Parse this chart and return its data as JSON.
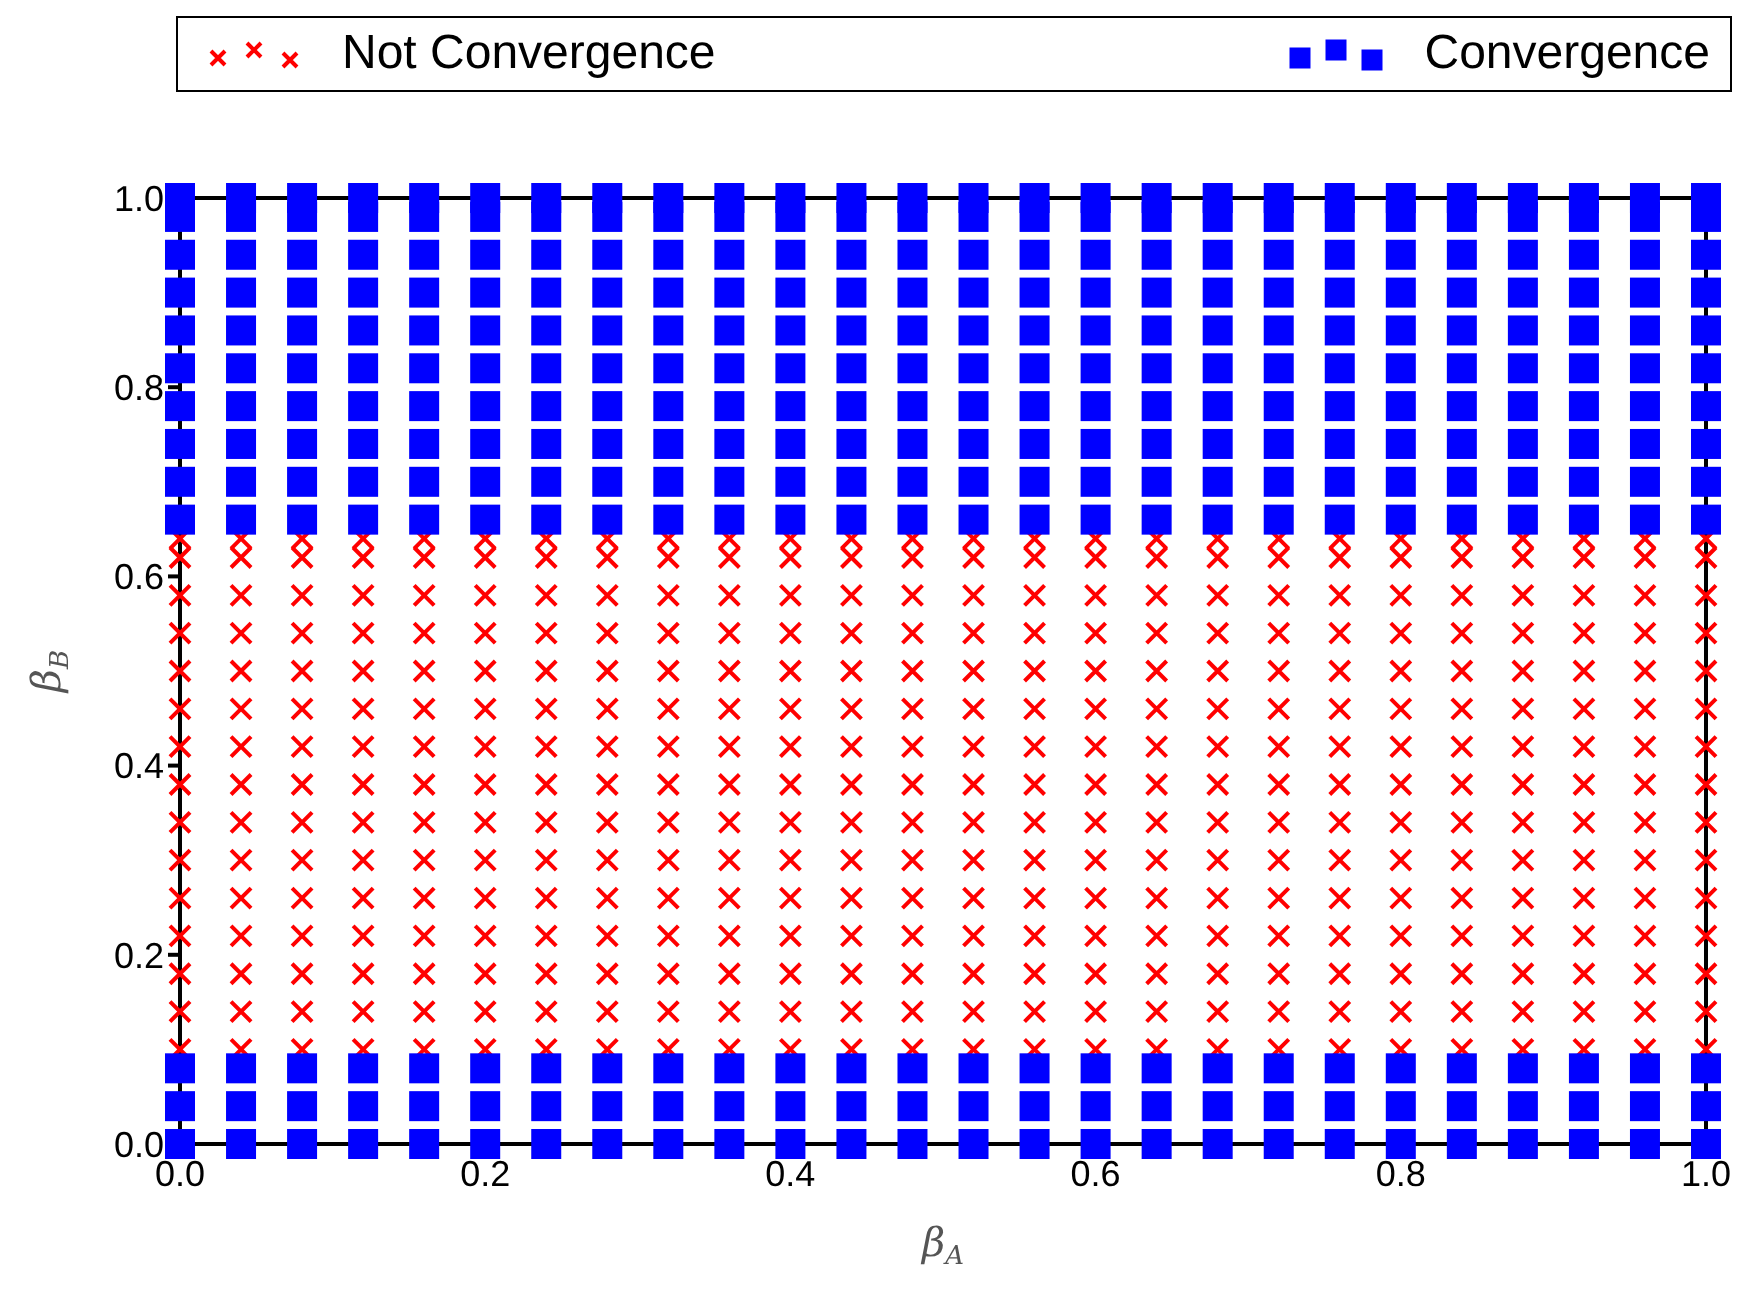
{
  "chart_data": {
    "type": "scatter",
    "xlabel": "β$_{A}$",
    "ylabel": "β$_{B}$",
    "legend": "top",
    "grid": false,
    "xlim": [
      0,
      1
    ],
    "ylim": [
      0,
      1
    ],
    "xticks": [
      {
        "value": 0,
        "label": "0.0"
      },
      {
        "value": 0.2,
        "label": "0.2"
      },
      {
        "value": 0.4,
        "label": "0.4"
      },
      {
        "value": 0.6,
        "label": "0.6"
      },
      {
        "value": 0.8,
        "label": "0.8"
      },
      {
        "value": 1,
        "label": "1.0"
      }
    ],
    "yticks": [
      {
        "value": 0,
        "label": "0.0"
      },
      {
        "value": 0.2,
        "label": "0.2"
      },
      {
        "value": 0.4,
        "label": "0.4"
      },
      {
        "value": 0.6,
        "label": "0.6"
      },
      {
        "value": 0.8,
        "label": "0.8"
      },
      {
        "value": 1,
        "label": "1.0"
      }
    ],
    "x": [
      0,
      0.04,
      0.08,
      0.12,
      0.16,
      0.2,
      0.24,
      0.28,
      0.32,
      0.36,
      0.4,
      0.44,
      0.48,
      0.52,
      0.56,
      0.6,
      0.64,
      0.68,
      0.72,
      0.76,
      0.8,
      0.84,
      0.88,
      0.92,
      0.96,
      1
    ],
    "series": [
      {
        "name": "Not Convergence",
        "color": "#ff0000",
        "marker": "cross",
        "values": [
          0.1,
          0.1,
          0.1,
          0.1,
          0.1,
          0.1,
          0.1,
          0.1,
          0.1,
          0.1,
          0.1,
          0.1,
          0.1,
          0.1,
          0.1,
          0.1,
          0.1,
          0.1,
          0.1,
          0.1,
          0.1,
          0.1,
          0.1,
          0.1,
          0.1,
          0.1
        ]
      },
      {
        "color": "#ff0000",
        "marker": "cross",
        "values": [
          0.14,
          0.14,
          0.14,
          0.14,
          0.14,
          0.14,
          0.14,
          0.14,
          0.14,
          0.14,
          0.14,
          0.14,
          0.14,
          0.14,
          0.14,
          0.14,
          0.14,
          0.14,
          0.14,
          0.14,
          0.14,
          0.14,
          0.14,
          0.14,
          0.14,
          0.14
        ]
      },
      {
        "color": "#ff0000",
        "marker": "cross",
        "values": [
          0.18,
          0.18,
          0.18,
          0.18,
          0.18,
          0.18,
          0.18,
          0.18,
          0.18,
          0.18,
          0.18,
          0.18,
          0.18,
          0.18,
          0.18,
          0.18,
          0.18,
          0.18,
          0.18,
          0.18,
          0.18,
          0.18,
          0.18,
          0.18,
          0.18,
          0.18
        ]
      },
      {
        "color": "#ff0000",
        "marker": "cross",
        "values": [
          0.22,
          0.22,
          0.22,
          0.22,
          0.22,
          0.22,
          0.22,
          0.22,
          0.22,
          0.22,
          0.22,
          0.22,
          0.22,
          0.22,
          0.22,
          0.22,
          0.22,
          0.22,
          0.22,
          0.22,
          0.22,
          0.22,
          0.22,
          0.22,
          0.22,
          0.22
        ]
      },
      {
        "color": "#ff0000",
        "marker": "cross",
        "values": [
          0.26,
          0.26,
          0.26,
          0.26,
          0.26,
          0.26,
          0.26,
          0.26,
          0.26,
          0.26,
          0.26,
          0.26,
          0.26,
          0.26,
          0.26,
          0.26,
          0.26,
          0.26,
          0.26,
          0.26,
          0.26,
          0.26,
          0.26,
          0.26,
          0.26,
          0.26
        ]
      },
      {
        "color": "#ff0000",
        "marker": "cross",
        "values": [
          0.3,
          0.3,
          0.3,
          0.3,
          0.3,
          0.3,
          0.3,
          0.3,
          0.3,
          0.3,
          0.3,
          0.3,
          0.3,
          0.3,
          0.3,
          0.3,
          0.3,
          0.3,
          0.3,
          0.3,
          0.3,
          0.3,
          0.3,
          0.3,
          0.3,
          0.3
        ]
      },
      {
        "color": "#ff0000",
        "marker": "cross",
        "values": [
          0.34,
          0.34,
          0.34,
          0.34,
          0.34,
          0.34,
          0.34,
          0.34,
          0.34,
          0.34,
          0.34,
          0.34,
          0.34,
          0.34,
          0.34,
          0.34,
          0.34,
          0.34,
          0.34,
          0.34,
          0.34,
          0.34,
          0.34,
          0.34,
          0.34,
          0.34
        ]
      },
      {
        "color": "#ff0000",
        "marker": "cross",
        "values": [
          0.38,
          0.38,
          0.38,
          0.38,
          0.38,
          0.38,
          0.38,
          0.38,
          0.38,
          0.38,
          0.38,
          0.38,
          0.38,
          0.38,
          0.38,
          0.38,
          0.38,
          0.38,
          0.38,
          0.38,
          0.38,
          0.38,
          0.38,
          0.38,
          0.38,
          0.38
        ]
      },
      {
        "color": "#ff0000",
        "marker": "cross",
        "values": [
          0.42,
          0.42,
          0.42,
          0.42,
          0.42,
          0.42,
          0.42,
          0.42,
          0.42,
          0.42,
          0.42,
          0.42,
          0.42,
          0.42,
          0.42,
          0.42,
          0.42,
          0.42,
          0.42,
          0.42,
          0.42,
          0.42,
          0.42,
          0.42,
          0.42,
          0.42
        ]
      },
      {
        "color": "#ff0000",
        "marker": "cross",
        "values": [
          0.46,
          0.46,
          0.46,
          0.46,
          0.46,
          0.46,
          0.46,
          0.46,
          0.46,
          0.46,
          0.46,
          0.46,
          0.46,
          0.46,
          0.46,
          0.46,
          0.46,
          0.46,
          0.46,
          0.46,
          0.46,
          0.46,
          0.46,
          0.46,
          0.46,
          0.46
        ]
      },
      {
        "color": "#ff0000",
        "marker": "cross",
        "values": [
          0.5,
          0.5,
          0.5,
          0.5,
          0.5,
          0.5,
          0.5,
          0.5,
          0.5,
          0.5,
          0.5,
          0.5,
          0.5,
          0.5,
          0.5,
          0.5,
          0.5,
          0.5,
          0.5,
          0.5,
          0.5,
          0.5,
          0.5,
          0.5,
          0.5,
          0.5
        ]
      },
      {
        "color": "#ff0000",
        "marker": "cross",
        "values": [
          0.54,
          0.54,
          0.54,
          0.54,
          0.54,
          0.54,
          0.54,
          0.54,
          0.54,
          0.54,
          0.54,
          0.54,
          0.54,
          0.54,
          0.54,
          0.54,
          0.54,
          0.54,
          0.54,
          0.54,
          0.54,
          0.54,
          0.54,
          0.54,
          0.54,
          0.54
        ]
      },
      {
        "color": "#ff0000",
        "marker": "cross",
        "values": [
          0.58,
          0.58,
          0.58,
          0.58,
          0.58,
          0.58,
          0.58,
          0.58,
          0.58,
          0.58,
          0.58,
          0.58,
          0.58,
          0.58,
          0.58,
          0.58,
          0.58,
          0.58,
          0.58,
          0.58,
          0.58,
          0.58,
          0.58,
          0.58,
          0.58,
          0.58
        ]
      },
      {
        "color": "#ff0000",
        "marker": "cross",
        "values": [
          0.62,
          0.62,
          0.62,
          0.62,
          0.62,
          0.62,
          0.62,
          0.62,
          0.62,
          0.62,
          0.62,
          0.62,
          0.62,
          0.62,
          0.62,
          0.62,
          0.62,
          0.62,
          0.62,
          0.62,
          0.62,
          0.62,
          0.62,
          0.62,
          0.62,
          0.62
        ]
      },
      {
        "color": "#ff0000",
        "marker": "cross",
        "values": [
          0.64,
          0.64,
          0.64,
          0.64,
          0.64,
          0.64,
          0.64,
          0.64,
          0.64,
          0.64,
          0.64,
          0.64,
          0.64,
          0.64,
          0.64,
          0.64,
          0.64,
          0.64,
          0.64,
          0.64,
          0.64,
          0.64,
          0.64,
          0.64,
          0.64,
          0.64
        ]
      },
      {
        "name": "Convergence",
        "color": "#0000ff",
        "marker": "square",
        "values": [
          0,
          0,
          0,
          0,
          0,
          0,
          0,
          0,
          0,
          0,
          0,
          0,
          0,
          0,
          0,
          0,
          0,
          0,
          0,
          0,
          0,
          0,
          0,
          0,
          0,
          0
        ]
      },
      {
        "color": "#0000ff",
        "marker": "square",
        "values": [
          0.04,
          0.04,
          0.04,
          0.04,
          0.04,
          0.04,
          0.04,
          0.04,
          0.04,
          0.04,
          0.04,
          0.04,
          0.04,
          0.04,
          0.04,
          0.04,
          0.04,
          0.04,
          0.04,
          0.04,
          0.04,
          0.04,
          0.04,
          0.04,
          0.04,
          0.04
        ]
      },
      {
        "color": "#0000ff",
        "marker": "square",
        "values": [
          0.08,
          0.08,
          0.08,
          0.08,
          0.08,
          0.08,
          0.08,
          0.08,
          0.08,
          0.08,
          0.08,
          0.08,
          0.08,
          0.08,
          0.08,
          0.08,
          0.08,
          0.08,
          0.08,
          0.08,
          0.08,
          0.08,
          0.08,
          0.08,
          0.08,
          0.08
        ]
      },
      {
        "color": "#0000ff",
        "marker": "square",
        "values": [
          0.66,
          0.66,
          0.66,
          0.66,
          0.66,
          0.66,
          0.66,
          0.66,
          0.66,
          0.66,
          0.66,
          0.66,
          0.66,
          0.66,
          0.66,
          0.66,
          0.66,
          0.66,
          0.66,
          0.66,
          0.66,
          0.66,
          0.66,
          0.66,
          0.66,
          0.66
        ]
      },
      {
        "color": "#0000ff",
        "marker": "square",
        "values": [
          0.7,
          0.7,
          0.7,
          0.7,
          0.7,
          0.7,
          0.7,
          0.7,
          0.7,
          0.7,
          0.7,
          0.7,
          0.7,
          0.7,
          0.7,
          0.7,
          0.7,
          0.7,
          0.7,
          0.7,
          0.7,
          0.7,
          0.7,
          0.7,
          0.7,
          0.7
        ]
      },
      {
        "color": "#0000ff",
        "marker": "square",
        "values": [
          0.74,
          0.74,
          0.74,
          0.74,
          0.74,
          0.74,
          0.74,
          0.74,
          0.74,
          0.74,
          0.74,
          0.74,
          0.74,
          0.74,
          0.74,
          0.74,
          0.74,
          0.74,
          0.74,
          0.74,
          0.74,
          0.74,
          0.74,
          0.74,
          0.74,
          0.74
        ]
      },
      {
        "color": "#0000ff",
        "marker": "square",
        "values": [
          0.78,
          0.78,
          0.78,
          0.78,
          0.78,
          0.78,
          0.78,
          0.78,
          0.78,
          0.78,
          0.78,
          0.78,
          0.78,
          0.78,
          0.78,
          0.78,
          0.78,
          0.78,
          0.78,
          0.78,
          0.78,
          0.78,
          0.78,
          0.78,
          0.78,
          0.78
        ]
      },
      {
        "color": "#0000ff",
        "marker": "square",
        "values": [
          0.82,
          0.82,
          0.82,
          0.82,
          0.82,
          0.82,
          0.82,
          0.82,
          0.82,
          0.82,
          0.82,
          0.82,
          0.82,
          0.82,
          0.82,
          0.82,
          0.82,
          0.82,
          0.82,
          0.82,
          0.82,
          0.82,
          0.82,
          0.82,
          0.82,
          0.82
        ]
      },
      {
        "color": "#0000ff",
        "marker": "square",
        "values": [
          0.86,
          0.86,
          0.86,
          0.86,
          0.86,
          0.86,
          0.86,
          0.86,
          0.86,
          0.86,
          0.86,
          0.86,
          0.86,
          0.86,
          0.86,
          0.86,
          0.86,
          0.86,
          0.86,
          0.86,
          0.86,
          0.86,
          0.86,
          0.86,
          0.86,
          0.86
        ]
      },
      {
        "color": "#0000ff",
        "marker": "square",
        "values": [
          0.9,
          0.9,
          0.9,
          0.9,
          0.9,
          0.9,
          0.9,
          0.9,
          0.9,
          0.9,
          0.9,
          0.9,
          0.9,
          0.9,
          0.9,
          0.9,
          0.9,
          0.9,
          0.9,
          0.9,
          0.9,
          0.9,
          0.9,
          0.9,
          0.9,
          0.9
        ]
      },
      {
        "color": "#0000ff",
        "marker": "square",
        "values": [
          0.94,
          0.94,
          0.94,
          0.94,
          0.94,
          0.94,
          0.94,
          0.94,
          0.94,
          0.94,
          0.94,
          0.94,
          0.94,
          0.94,
          0.94,
          0.94,
          0.94,
          0.94,
          0.94,
          0.94,
          0.94,
          0.94,
          0.94,
          0.94,
          0.94,
          0.94
        ]
      },
      {
        "color": "#0000ff",
        "marker": "square",
        "values": [
          0.98,
          0.98,
          0.98,
          0.98,
          0.98,
          0.98,
          0.98,
          0.98,
          0.98,
          0.98,
          0.98,
          0.98,
          0.98,
          0.98,
          0.98,
          0.98,
          0.98,
          0.98,
          0.98,
          0.98,
          0.98,
          0.98,
          0.98,
          0.98,
          0.98,
          0.98
        ]
      },
      {
        "color": "#0000ff",
        "marker": "square",
        "values": [
          1,
          1,
          1,
          1,
          1,
          1,
          1,
          1,
          1,
          1,
          1,
          1,
          1,
          1,
          1,
          1,
          1,
          1,
          1,
          1,
          1,
          1,
          1,
          1,
          1,
          1
        ]
      }
    ]
  }
}
